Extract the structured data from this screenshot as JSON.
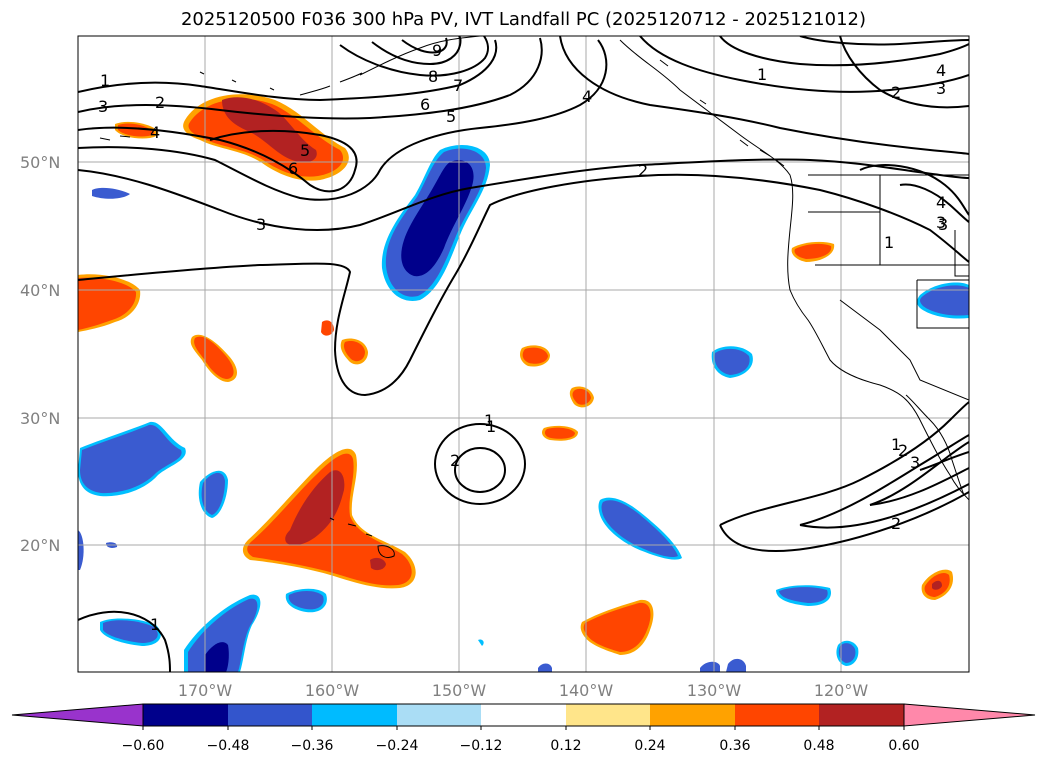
{
  "title": "2025120500 F036 300 hPa PV, IVT Landfall PC (2025120712 - 2025121012)",
  "lat_labels": [
    "50°N",
    "40°N",
    "30°N",
    "20°N"
  ],
  "lon_labels": [
    "170°W",
    "160°W",
    "150°W",
    "140°W",
    "130°W",
    "120°W"
  ],
  "colorbar": {
    "ticks": [
      "−0.60",
      "−0.48",
      "−0.36",
      "−0.24",
      "−0.12",
      "0.12",
      "0.24",
      "0.36",
      "0.48",
      "0.60"
    ],
    "colors": [
      "#9933cc",
      "#00008b",
      "#3355cc",
      "#00bbff",
      "#aaddf5",
      "#ffffff",
      "#ffe58a",
      "#ffa200",
      "#ff4500",
      "#b22222",
      "#ff88aa"
    ]
  },
  "contour_labels": [
    "1",
    "2",
    "3",
    "4",
    "5",
    "6",
    "7",
    "8",
    "9",
    "1",
    "2",
    "1",
    "2",
    "3",
    "4",
    "5",
    "6",
    "1",
    "2",
    "4",
    "3",
    "2",
    "1",
    "1",
    "2",
    "3",
    "1",
    "3",
    "4",
    "3"
  ],
  "colors": {
    "negative_dark": "#00008b",
    "negative_mid": "#3a5bd0",
    "negative_light": "#00bfff",
    "positive_dark": "#b22222",
    "positive_mid": "#ff4500",
    "positive_light": "#ffa200",
    "grid": "#a9a9a9",
    "axis_label": "#808080"
  }
}
